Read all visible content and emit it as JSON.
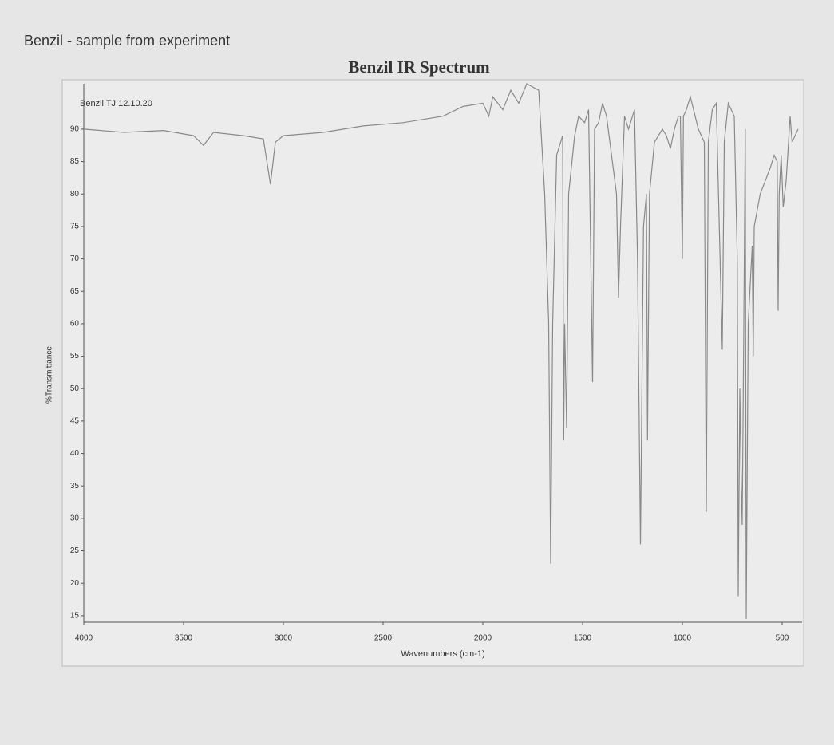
{
  "page_note": "Benzil - sample from experiment",
  "chart_data": {
    "type": "line",
    "title": "Benzil IR Spectrum",
    "subtitle": "Benzil TJ 12.10.20",
    "xlabel": "Wavenumbers (cm-1)",
    "ylabel": "%Transmittance",
    "color": "#8a8a8a",
    "grid": false,
    "xlim": [
      4000,
      400
    ],
    "ylim": [
      14,
      97
    ],
    "xticks": [
      4000,
      3500,
      3000,
      2500,
      2000,
      1500,
      1000,
      500
    ],
    "yticks": [
      15,
      20,
      25,
      30,
      35,
      40,
      45,
      50,
      55,
      60,
      65,
      70,
      75,
      80,
      85,
      90
    ],
    "x": [
      4000,
      3800,
      3600,
      3450,
      3400,
      3350,
      3200,
      3100,
      3065,
      3040,
      3000,
      2800,
      2600,
      2400,
      2200,
      2100,
      2000,
      1970,
      1950,
      1900,
      1860,
      1820,
      1780,
      1720,
      1690,
      1670,
      1660,
      1650,
      1630,
      1600,
      1595,
      1590,
      1580,
      1570,
      1540,
      1520,
      1490,
      1470,
      1450,
      1440,
      1420,
      1400,
      1380,
      1330,
      1320,
      1310,
      1290,
      1270,
      1240,
      1225,
      1210,
      1195,
      1180,
      1175,
      1165,
      1140,
      1100,
      1080,
      1060,
      1040,
      1020,
      1010,
      1000,
      995,
      980,
      960,
      920,
      890,
      880,
      870,
      850,
      830,
      800,
      790,
      770,
      740,
      725,
      720,
      712,
      705,
      700,
      692,
      685,
      680,
      670,
      650,
      645,
      640,
      610,
      560,
      540,
      525,
      520,
      515,
      505,
      495,
      480,
      460,
      450,
      420
    ],
    "values": [
      90,
      89.5,
      89.8,
      89,
      87.5,
      89.5,
      89,
      88.5,
      81.5,
      88,
      89,
      89.5,
      90.5,
      91,
      92,
      93.5,
      94,
      92,
      95,
      93,
      96,
      94,
      97,
      96,
      80,
      60,
      23,
      60,
      86,
      89,
      42,
      60,
      44,
      80,
      89,
      92,
      91,
      93,
      51,
      90,
      91,
      94,
      92,
      80,
      64,
      75,
      92,
      90,
      93,
      70,
      26,
      75,
      80,
      42,
      80,
      88,
      90,
      89,
      87,
      90,
      92,
      92,
      70,
      92,
      93,
      95,
      90,
      88,
      31,
      88,
      93,
      94,
      56,
      88,
      94,
      92,
      70,
      18,
      50,
      35,
      29,
      60,
      90,
      14.5,
      60,
      72,
      55,
      75,
      80,
      84,
      86,
      85,
      62,
      80,
      86,
      78,
      82,
      92,
      88,
      90
    ]
  }
}
